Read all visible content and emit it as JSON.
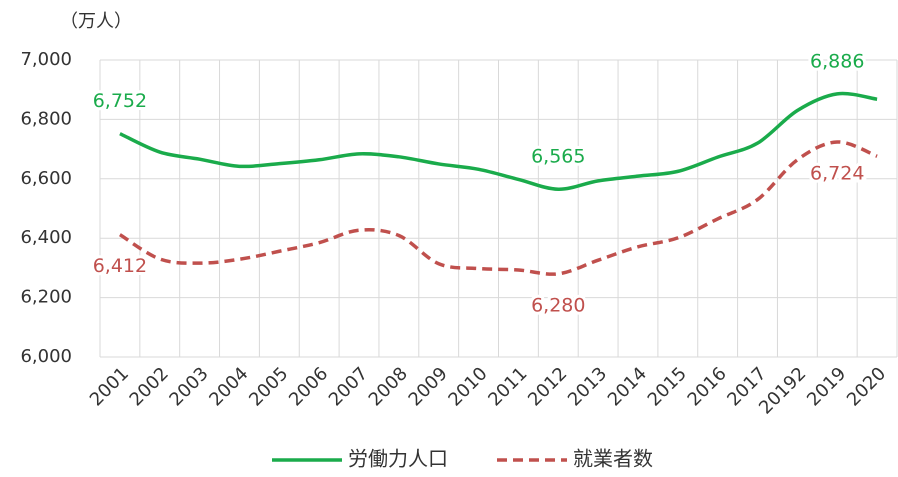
{
  "chart_data": {
    "type": "line",
    "y_label": "（万人）",
    "categories": [
      "2001",
      "2002",
      "2003",
      "2004",
      "2005",
      "2006",
      "2007",
      "2008",
      "2009",
      "2010",
      "2011",
      "2012",
      "2013",
      "2014",
      "2015",
      "2016",
      "2017",
      "20192",
      "2019",
      "2020"
    ],
    "series": [
      {
        "name": "労働力人口",
        "color": "#1aab4b",
        "dash": false,
        "values": [
          6752,
          6690,
          6666,
          6642,
          6651,
          6664,
          6684,
          6674,
          6650,
          6632,
          6598,
          6565,
          6593,
          6609,
          6625,
          6673,
          6720,
          6830,
          6886,
          6868
        ],
        "value_labels": [
          "6,752",
          null,
          null,
          null,
          null,
          null,
          null,
          null,
          null,
          null,
          null,
          "6,565",
          null,
          null,
          null,
          null,
          null,
          null,
          "6,886",
          null
        ]
      },
      {
        "name": "就業者数",
        "color": "#c0504d",
        "dash": true,
        "values": [
          6412,
          6330,
          6316,
          6329,
          6356,
          6385,
          6427,
          6409,
          6314,
          6298,
          6293,
          6280,
          6326,
          6371,
          6401,
          6465,
          6530,
          6664,
          6724,
          6676
        ],
        "value_labels": [
          "6,412",
          null,
          null,
          null,
          null,
          null,
          null,
          null,
          null,
          null,
          null,
          "6,280",
          null,
          null,
          null,
          null,
          null,
          null,
          "6,724",
          null
        ]
      }
    ],
    "ylim": [
      6000,
      7000
    ],
    "yticks": [
      {
        "value": 6000,
        "label": "6,000"
      },
      {
        "value": 6200,
        "label": "6,200"
      },
      {
        "value": 6400,
        "label": "6,400"
      },
      {
        "value": 6600,
        "label": "6,600"
      },
      {
        "value": 6800,
        "label": "6,800"
      },
      {
        "value": 7000,
        "label": "7,000"
      }
    ],
    "grid": true,
    "legend": "bottom"
  }
}
